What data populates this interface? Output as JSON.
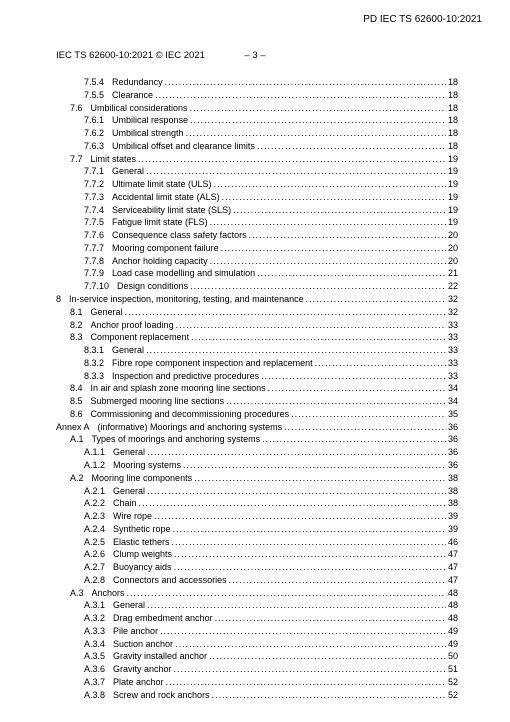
{
  "doc_id_top_right": "PD IEC TS 62600-10:2021",
  "header_left": "IEC TS 62600-10:2021 © IEC 2021",
  "header_center": "– 3 –",
  "entries": [
    {
      "indent": 2,
      "num": "7.5.4",
      "title": "Redundancy",
      "page": "18"
    },
    {
      "indent": 2,
      "num": "7.5.5",
      "title": "Clearance",
      "page": "18"
    },
    {
      "indent": 1,
      "num": "7.6",
      "title": "Umbilical considerations",
      "page": "18"
    },
    {
      "indent": 2,
      "num": "7.6.1",
      "title": "Umbilical response",
      "page": "18"
    },
    {
      "indent": 2,
      "num": "7.6.2",
      "title": "Umbilical strength",
      "page": "18"
    },
    {
      "indent": 2,
      "num": "7.6.3",
      "title": "Umbilical offset and clearance limits",
      "page": "18"
    },
    {
      "indent": 1,
      "num": "7.7",
      "title": "Limit states",
      "page": "19"
    },
    {
      "indent": 2,
      "num": "7.7.1",
      "title": "General",
      "page": "19"
    },
    {
      "indent": 2,
      "num": "7.7.2",
      "title": "Ultimate limit state (ULS)",
      "page": "19"
    },
    {
      "indent": 2,
      "num": "7.7.3",
      "title": "Accidental limit state (ALS)",
      "page": "19"
    },
    {
      "indent": 2,
      "num": "7.7.4",
      "title": "Serviceability limit state (SLS)",
      "page": "19"
    },
    {
      "indent": 2,
      "num": "7.7.5",
      "title": "Fatigue limit state (FLS)",
      "page": "19"
    },
    {
      "indent": 2,
      "num": "7.7.6",
      "title": "Consequence class safety factors",
      "page": "20"
    },
    {
      "indent": 2,
      "num": "7.7.7",
      "title": "Mooring component failure",
      "page": "20"
    },
    {
      "indent": 2,
      "num": "7.7.8",
      "title": "Anchor holding capacity",
      "page": "20"
    },
    {
      "indent": 2,
      "num": "7.7.9",
      "title": "Load case modelling and simulation",
      "page": "21"
    },
    {
      "indent": 2,
      "num": "7.7.10",
      "title": "Design conditions",
      "page": "22"
    },
    {
      "indent": 0,
      "num": "8",
      "title": "In-service inspection, monitoring, testing, and maintenance",
      "page": "32"
    },
    {
      "indent": 1,
      "num": "8.1",
      "title": "General",
      "page": "32"
    },
    {
      "indent": 1,
      "num": "8.2",
      "title": "Anchor proof loading",
      "page": "33"
    },
    {
      "indent": 1,
      "num": "8.3",
      "title": "Component replacement",
      "page": "33"
    },
    {
      "indent": 2,
      "num": "8.3.1",
      "title": "General",
      "page": "33"
    },
    {
      "indent": 2,
      "num": "8.3.2",
      "title": "Fibre rope component inspection and replacement",
      "page": "33"
    },
    {
      "indent": 2,
      "num": "8.3.3",
      "title": "Inspection and predictive procedures",
      "page": "33"
    },
    {
      "indent": 1,
      "num": "8.4",
      "title": "In air and splash zone mooring line sections",
      "page": "34"
    },
    {
      "indent": 1,
      "num": "8.5",
      "title": "Submerged mooring line sections",
      "page": "34"
    },
    {
      "indent": 1,
      "num": "8.6",
      "title": "Commissioning and decommissioning procedures",
      "page": "35"
    },
    {
      "indent": 0,
      "num": "Annex A",
      "title": "(informative)  Moorings and anchoring systems",
      "page": "36"
    },
    {
      "indent": 1,
      "num": "A.1",
      "title": "Types of moorings and anchoring systems",
      "page": "36"
    },
    {
      "indent": 2,
      "num": "A.1.1",
      "title": "General",
      "page": "36"
    },
    {
      "indent": 2,
      "num": "A.1.2",
      "title": "Mooring systems",
      "page": "36"
    },
    {
      "indent": 1,
      "num": "A.2",
      "title": "Mooring line components",
      "page": "38"
    },
    {
      "indent": 2,
      "num": "A.2.1",
      "title": "General",
      "page": "38"
    },
    {
      "indent": 2,
      "num": "A.2.2",
      "title": "Chain",
      "page": "38"
    },
    {
      "indent": 2,
      "num": "A.2.3",
      "title": "Wire rope",
      "page": "39"
    },
    {
      "indent": 2,
      "num": "A.2.4",
      "title": "Synthetic rope",
      "page": "39"
    },
    {
      "indent": 2,
      "num": "A.2.5",
      "title": "Elastic tethers",
      "page": "46"
    },
    {
      "indent": 2,
      "num": "A.2.6",
      "title": "Clump weights",
      "page": "47"
    },
    {
      "indent": 2,
      "num": "A.2.7",
      "title": "Buoyancy aids",
      "page": "47"
    },
    {
      "indent": 2,
      "num": "A.2.8",
      "title": "Connectors and accessories",
      "page": "47"
    },
    {
      "indent": 1,
      "num": "A.3",
      "title": "Anchors",
      "page": "48"
    },
    {
      "indent": 2,
      "num": "A.3.1",
      "title": "General",
      "page": "48"
    },
    {
      "indent": 2,
      "num": "A.3.2",
      "title": "Drag embedment anchor",
      "page": "48"
    },
    {
      "indent": 2,
      "num": "A.3.3",
      "title": "Pile anchor",
      "page": "49"
    },
    {
      "indent": 2,
      "num": "A.3.4",
      "title": "Suction anchor",
      "page": "49"
    },
    {
      "indent": 2,
      "num": "A.3.5",
      "title": "Gravity installed anchor",
      "page": "50"
    },
    {
      "indent": 2,
      "num": "A.3.6",
      "title": "Gravity anchor",
      "page": "51"
    },
    {
      "indent": 2,
      "num": "A.3.7",
      "title": "Plate anchor",
      "page": "52"
    },
    {
      "indent": 2,
      "num": "A.3.8",
      "title": "Screw and rock anchors",
      "page": "52"
    }
  ]
}
